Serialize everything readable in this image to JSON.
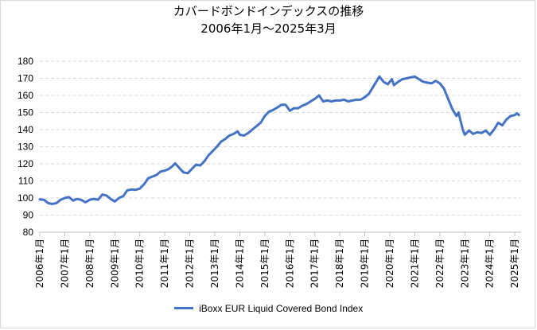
{
  "chart_data": {
    "type": "line",
    "title": "カバードボンドインデックスの推移",
    "subtitle": "2006年1月～2025年3月",
    "xlabel": "",
    "ylabel": "",
    "ylim": [
      80,
      180
    ],
    "yticks": [
      80,
      90,
      100,
      110,
      120,
      130,
      140,
      150,
      160,
      170,
      180
    ],
    "xticks": [
      "2006年1月",
      "2007年1月",
      "2008年1月",
      "2009年1月",
      "2010年1月",
      "2011年1月",
      "2012年1月",
      "2013年1月",
      "2014年1月",
      "2015年1月",
      "2016年1月",
      "2017年1月",
      "2018年1月",
      "2019年1月",
      "2020年1月",
      "2021年1月",
      "2022年1月",
      "2023年1月",
      "2024年1月",
      "2025年1月"
    ],
    "grid": "horizontal dashed",
    "legend_position": "bottom",
    "series_color": "#4472c4",
    "series": [
      {
        "name": "iBoxx EUR Liquid Covered Bond Index",
        "points": [
          [
            "2006-01",
            99.2
          ],
          [
            "2006-03",
            99
          ],
          [
            "2006-05",
            97
          ],
          [
            "2006-07",
            96.5
          ],
          [
            "2006-09",
            97
          ],
          [
            "2006-11",
            99
          ],
          [
            "2007-01",
            100
          ],
          [
            "2007-03",
            100.5
          ],
          [
            "2007-05",
            98.5
          ],
          [
            "2007-07",
            99.5
          ],
          [
            "2007-09",
            98.8
          ],
          [
            "2007-11",
            97.5
          ],
          [
            "2008-01",
            99
          ],
          [
            "2008-03",
            99.5
          ],
          [
            "2008-05",
            99
          ],
          [
            "2008-07",
            102
          ],
          [
            "2008-09",
            101.5
          ],
          [
            "2008-11",
            99.5
          ],
          [
            "2009-01",
            98
          ],
          [
            "2009-03",
            100
          ],
          [
            "2009-05",
            101
          ],
          [
            "2009-07",
            104.5
          ],
          [
            "2009-09",
            105
          ],
          [
            "2009-11",
            104.8
          ],
          [
            "2010-01",
            105.5
          ],
          [
            "2010-03",
            108
          ],
          [
            "2010-05",
            111.5
          ],
          [
            "2010-07",
            112.5
          ],
          [
            "2010-09",
            113.5
          ],
          [
            "2010-11",
            115.5
          ],
          [
            "2011-01",
            116
          ],
          [
            "2011-03",
            117
          ],
          [
            "2011-05",
            119
          ],
          [
            "2011-06",
            120.3
          ],
          [
            "2011-08",
            117.5
          ],
          [
            "2011-10",
            115
          ],
          [
            "2011-12",
            114.5
          ],
          [
            "2012-02",
            117
          ],
          [
            "2012-04",
            119.5
          ],
          [
            "2012-06",
            119
          ],
          [
            "2012-08",
            121.5
          ],
          [
            "2012-10",
            125
          ],
          [
            "2012-12",
            127.5
          ],
          [
            "2013-02",
            130
          ],
          [
            "2013-04",
            133
          ],
          [
            "2013-06",
            134.5
          ],
          [
            "2013-08",
            136.5
          ],
          [
            "2013-10",
            137.5
          ],
          [
            "2013-12",
            139
          ],
          [
            "2014-01",
            137
          ],
          [
            "2014-03",
            136.5
          ],
          [
            "2014-05",
            138
          ],
          [
            "2014-07",
            140
          ],
          [
            "2014-09",
            142
          ],
          [
            "2014-11",
            144
          ],
          [
            "2015-01",
            148
          ],
          [
            "2015-03",
            150.5
          ],
          [
            "2015-05",
            151.5
          ],
          [
            "2015-07",
            153
          ],
          [
            "2015-09",
            154.5
          ],
          [
            "2015-11",
            154.5
          ],
          [
            "2016-01",
            151
          ],
          [
            "2016-03",
            152.5
          ],
          [
            "2016-05",
            152.5
          ],
          [
            "2016-07",
            154
          ],
          [
            "2016-09",
            155
          ],
          [
            "2016-11",
            156.5
          ],
          [
            "2017-01",
            158
          ],
          [
            "2017-03",
            160
          ],
          [
            "2017-05",
            156.5
          ],
          [
            "2017-07",
            157
          ],
          [
            "2017-09",
            156.5
          ],
          [
            "2017-11",
            157
          ],
          [
            "2018-01",
            157
          ],
          [
            "2018-03",
            157.5
          ],
          [
            "2018-05",
            156.5
          ],
          [
            "2018-07",
            157
          ],
          [
            "2018-09",
            157.5
          ],
          [
            "2018-11",
            157.5
          ],
          [
            "2019-01",
            159
          ],
          [
            "2019-03",
            161
          ],
          [
            "2019-05",
            165
          ],
          [
            "2019-08",
            171
          ],
          [
            "2019-10",
            168
          ],
          [
            "2019-12",
            166.5
          ],
          [
            "2020-02",
            169.5
          ],
          [
            "2020-03",
            166
          ],
          [
            "2020-05",
            168
          ],
          [
            "2020-07",
            169.5
          ],
          [
            "2020-09",
            170
          ],
          [
            "2020-11",
            170.5
          ],
          [
            "2021-01",
            171
          ],
          [
            "2021-03",
            169.5
          ],
          [
            "2021-05",
            168
          ],
          [
            "2021-07",
            167.5
          ],
          [
            "2021-09",
            167
          ],
          [
            "2021-11",
            168.5
          ],
          [
            "2022-01",
            167
          ],
          [
            "2022-03",
            164
          ],
          [
            "2022-05",
            158
          ],
          [
            "2022-07",
            152
          ],
          [
            "2022-09",
            148
          ],
          [
            "2022-10",
            150
          ],
          [
            "2022-11",
            145
          ],
          [
            "2022-12",
            140
          ],
          [
            "2023-01",
            137
          ],
          [
            "2023-03",
            139.5
          ],
          [
            "2023-05",
            137.5
          ],
          [
            "2023-07",
            138.5
          ],
          [
            "2023-09",
            138
          ],
          [
            "2023-11",
            139.5
          ],
          [
            "2024-01",
            137
          ],
          [
            "2024-03",
            140
          ],
          [
            "2024-05",
            144
          ],
          [
            "2024-07",
            142.5
          ],
          [
            "2024-09",
            146
          ],
          [
            "2024-11",
            148
          ],
          [
            "2025-01",
            148.5
          ],
          [
            "2025-02",
            149.5
          ],
          [
            "2025-03",
            148.5
          ]
        ]
      }
    ]
  }
}
